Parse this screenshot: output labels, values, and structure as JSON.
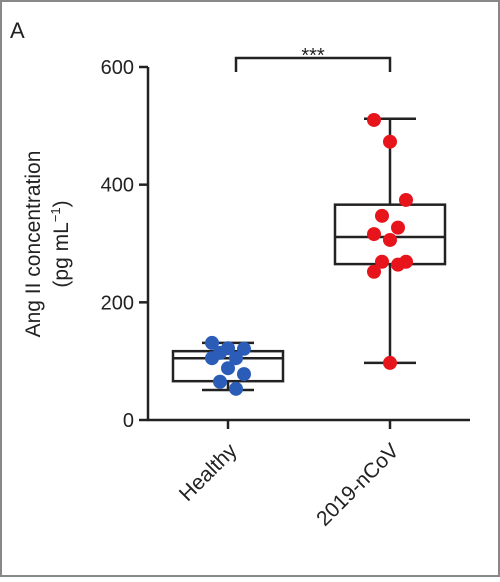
{
  "chart_data": {
    "type": "box",
    "panel_label": "A",
    "y_label": {
      "line1": "Ang II concentration",
      "unit": "(pg mL",
      "unit_exponent": "−1",
      "unit_close": ")"
    },
    "categories": [
      "Healthy",
      "2019-nCoV"
    ],
    "boxes": [
      {
        "color": "#2b5cb8",
        "whisker_low": 51,
        "q1": 66,
        "median": 105,
        "q3": 117,
        "whisker_high": 131,
        "points": [
          131,
          122,
          121,
          114,
          105,
          105,
          88,
          78,
          65,
          53
        ]
      },
      {
        "color": "#e8141b",
        "whisker_low": 97,
        "q1": 265,
        "median": 311,
        "q3": 366,
        "whisker_high": 512,
        "points": [
          510,
          473,
          374,
          347,
          327,
          316,
          306,
          269,
          269,
          264,
          252,
          97
        ]
      }
    ],
    "annotation": "***",
    "ylim": [
      0,
      600
    ],
    "yticks": [
      0,
      200,
      400,
      600
    ]
  }
}
